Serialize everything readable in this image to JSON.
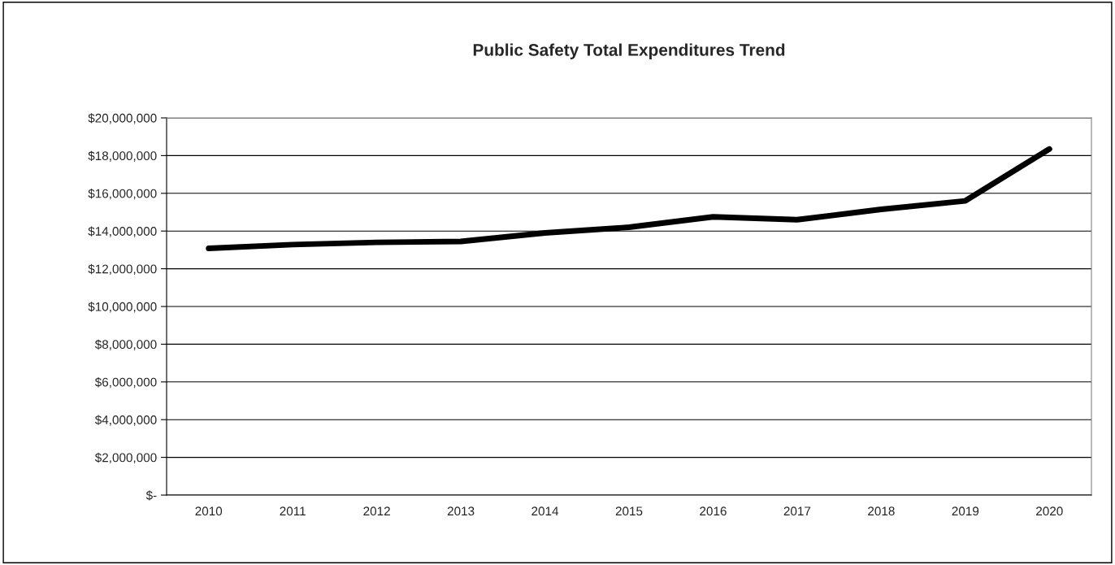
{
  "chart_data": {
    "type": "line",
    "title": "Public Safety Total Expenditures Trend",
    "categories": [
      "2010",
      "2011",
      "2012",
      "2013",
      "2014",
      "2015",
      "2016",
      "2017",
      "2018",
      "2019",
      "2020"
    ],
    "series": [
      {
        "color": "#000000",
        "values": [
          13080000,
          13280000,
          13400000,
          13450000,
          13900000,
          14200000,
          14750000,
          14600000,
          15150000,
          15600000,
          18350000
        ]
      }
    ],
    "ylim": [
      0,
      20000000
    ],
    "yticks": [
      {
        "value": 0,
        "label": "$-"
      },
      {
        "value": 2000000,
        "label": "$2,000,000"
      },
      {
        "value": 4000000,
        "label": "$4,000,000"
      },
      {
        "value": 6000000,
        "label": "$6,000,000"
      },
      {
        "value": 8000000,
        "label": "$8,000,000"
      },
      {
        "value": 10000000,
        "label": "$10,000,000"
      },
      {
        "value": 12000000,
        "label": "$12,000,000"
      },
      {
        "value": 14000000,
        "label": "$14,000,000"
      },
      {
        "value": 16000000,
        "label": "$16,000,000"
      },
      {
        "value": 18000000,
        "label": "$18,000,000"
      },
      {
        "value": 20000000,
        "label": "$20,000,000"
      }
    ],
    "grid": "y",
    "marker": "none",
    "line_style": "solid"
  }
}
